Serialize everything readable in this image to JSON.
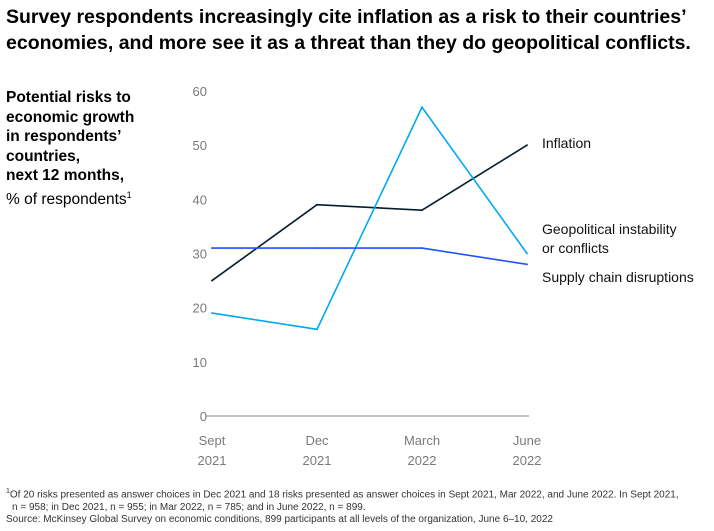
{
  "title": "Survey respondents increasingly cite inflation as a risk to their countries’ economies, and more see it as a threat than they do geopolitical conflicts.",
  "ylabel": {
    "bold": [
      "Potential risks to",
      "economic growth",
      "in respondents’",
      "countries,",
      "next 12 months,"
    ],
    "unit": "% of respondents",
    "marker": "1"
  },
  "footnote": {
    "marker": "1",
    "text": "Of 20 risks presented as answer choices in Dec 2021 and 18 risks presented as answer choices in Sept 2021, Mar 2022, and June 2022. In Sept 2021,",
    "text2": "n = 958; in Dec 2021, n = 955; in Mar 2022, n = 785; and in June 2022, n = 899.",
    "source": "Source: McKinsey Global Survey on economic conditions, 899 participants at all levels of the organization, June 6–10, 2022"
  },
  "chart_data": {
    "type": "line",
    "categories": [
      [
        "Sept",
        "2021"
      ],
      [
        "Dec",
        "2021"
      ],
      [
        "March",
        "2022"
      ],
      [
        "June",
        "2022"
      ]
    ],
    "ylim": [
      0,
      60
    ],
    "yticks": [
      0,
      10,
      20,
      30,
      40,
      50,
      60
    ],
    "grid": false,
    "series": [
      {
        "name": "Inflation",
        "label_lines": [
          "Inflation"
        ],
        "color": "#051c2c",
        "values": [
          25,
          39,
          38,
          50
        ]
      },
      {
        "name": "Geopolitical instability or conflicts",
        "label_lines": [
          "Geopolitical instability",
          "or conflicts"
        ],
        "color": "#00a9f4",
        "values": [
          19,
          16,
          57,
          30
        ]
      },
      {
        "name": "Supply chain disruptions",
        "label_lines": [
          "Supply chain disruptions"
        ],
        "color": "#2251ff",
        "values": [
          31,
          31,
          31,
          28
        ]
      }
    ]
  }
}
